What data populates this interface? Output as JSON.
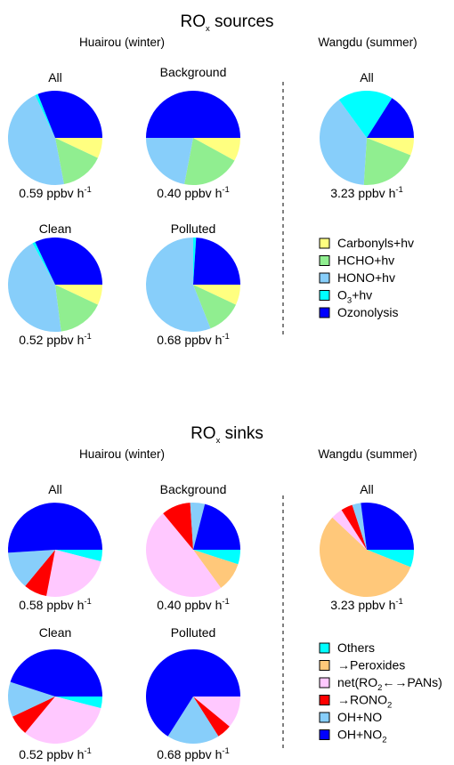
{
  "sources": {
    "title": "RO",
    "title_sub": "x",
    "title_rest": " sources",
    "left_header": "Huairou (winter)",
    "right_header": "Wangdu (summer)",
    "legend": [
      {
        "name": "Carbonyls+hv",
        "color": "#ffff80"
      },
      {
        "name": "HCHO+hv",
        "color": "#90ee90"
      },
      {
        "name": "HONO+hv",
        "color": "#87cefa"
      },
      {
        "name": "O",
        "sub": "3",
        "rest": "+hv",
        "color": "#00ffff"
      },
      {
        "name": "Ozonolysis",
        "color": "#0000ff"
      }
    ]
  },
  "sinks": {
    "title": "RO",
    "title_sub": "x",
    "title_rest": " sinks",
    "left_header": "Huairou (winter)",
    "right_header": "Wangdu (summer)",
    "legend": [
      {
        "name": "Others",
        "color": "#00ffff"
      },
      {
        "name": "→Peroxides",
        "color": "#ffc87a"
      },
      {
        "name": "net(RO",
        "sub": "2",
        "rest": "←→PANs)",
        "color": "#ffc8ff"
      },
      {
        "name": "→RONO",
        "sub": "2",
        "rest": "",
        "color": "#ff0000"
      },
      {
        "name": "OH+NO",
        "color": "#87cefa"
      },
      {
        "name": "OH+NO",
        "sub": "2",
        "rest": "",
        "color": "#0000ff"
      }
    ]
  },
  "rate_unit": "ppbv h",
  "rate_exp": "-1",
  "chart_data": [
    {
      "type": "pie",
      "group": "sources",
      "site": "Huairou (winter)",
      "title": "All",
      "rate": "0.59",
      "categories": [
        "Carbonyls+hv",
        "HCHO+hv",
        "HONO+hv",
        "O3+hv",
        "Ozonolysis"
      ],
      "values": [
        0.07,
        0.15,
        0.46,
        0.01,
        0.31
      ]
    },
    {
      "type": "pie",
      "group": "sources",
      "site": "Huairou (winter)",
      "title": "Background",
      "rate": "0.40",
      "categories": [
        "Carbonyls+hv",
        "HCHO+hv",
        "HONO+hv",
        "O3+hv",
        "Ozonolysis"
      ],
      "values": [
        0.08,
        0.2,
        0.22,
        0.0,
        0.5
      ]
    },
    {
      "type": "pie",
      "group": "sources",
      "site": "Wangdu (summer)",
      "title": "All",
      "rate": "3.23",
      "categories": [
        "Carbonyls+hv",
        "HCHO+hv",
        "HONO+hv",
        "O3+hv",
        "Ozonolysis"
      ],
      "values": [
        0.06,
        0.2,
        0.39,
        0.19,
        0.16
      ]
    },
    {
      "type": "pie",
      "group": "sources",
      "site": "Huairou (winter)",
      "title": "Clean",
      "rate": "0.52",
      "categories": [
        "Carbonyls+hv",
        "HCHO+hv",
        "HONO+hv",
        "O3+hv",
        "Ozonolysis"
      ],
      "values": [
        0.07,
        0.16,
        0.44,
        0.01,
        0.32
      ]
    },
    {
      "type": "pie",
      "group": "sources",
      "site": "Huairou (winter)",
      "title": "Polluted",
      "rate": "0.68",
      "categories": [
        "Carbonyls+hv",
        "HCHO+hv",
        "HONO+hv",
        "O3+hv",
        "Ozonolysis"
      ],
      "values": [
        0.07,
        0.12,
        0.56,
        0.01,
        0.24
      ]
    },
    {
      "type": "pie",
      "group": "sinks",
      "site": "Huairou (winter)",
      "title": "All",
      "rate": "0.58",
      "categories": [
        "Others",
        "→Peroxides",
        "net(RO2←→PANs)",
        "→RONO2",
        "OH+NO",
        "OH+NO2"
      ],
      "values": [
        0.04,
        0.0,
        0.24,
        0.08,
        0.13,
        0.51
      ]
    },
    {
      "type": "pie",
      "group": "sinks",
      "site": "Huairou (winter)",
      "title": "Background",
      "rate": "0.40",
      "categories": [
        "Others",
        "→Peroxides",
        "net(RO2←→PANs)",
        "→RONO2",
        "OH+NO",
        "OH+NO2"
      ],
      "values": [
        0.05,
        0.1,
        0.49,
        0.1,
        0.05,
        0.21
      ]
    },
    {
      "type": "pie",
      "group": "sinks",
      "site": "Wangdu (summer)",
      "title": "All",
      "rate": "3.23",
      "categories": [
        "Others",
        "→Peroxides",
        "net(RO2←→PANs)",
        "→RONO2",
        "OH+NO",
        "OH+NO2"
      ],
      "values": [
        0.06,
        0.56,
        0.04,
        0.04,
        0.03,
        0.27
      ]
    },
    {
      "type": "pie",
      "group": "sinks",
      "site": "Huairou (winter)",
      "title": "Clean",
      "rate": "0.52",
      "categories": [
        "Others",
        "→Peroxides",
        "net(RO2←→PANs)",
        "→RONO2",
        "OH+NO",
        "OH+NO2"
      ],
      "values": [
        0.04,
        0.0,
        0.32,
        0.07,
        0.12,
        0.45
      ]
    },
    {
      "type": "pie",
      "group": "sinks",
      "site": "Huairou (winter)",
      "title": "Polluted",
      "rate": "0.68",
      "categories": [
        "Others",
        "→Peroxides",
        "net(RO2←→PANs)",
        "→RONO2",
        "OH+NO",
        "OH+NO2"
      ],
      "values": [
        0.0,
        0.0,
        0.11,
        0.05,
        0.18,
        0.66
      ]
    }
  ]
}
